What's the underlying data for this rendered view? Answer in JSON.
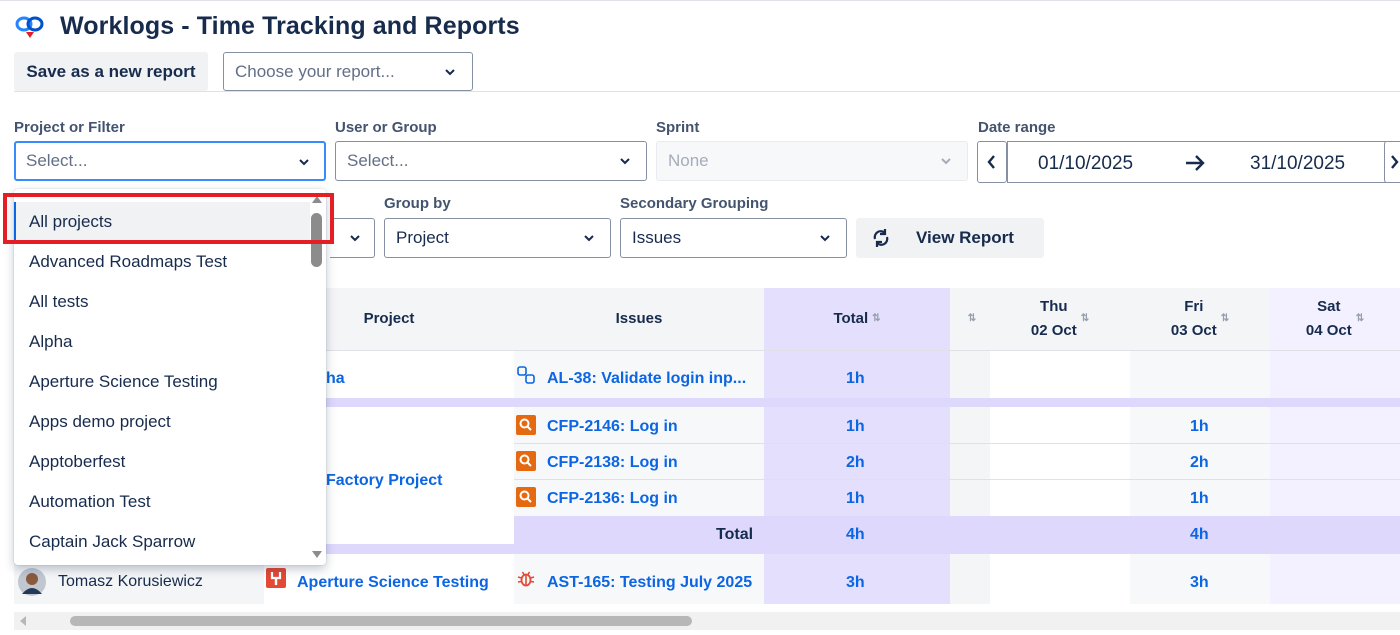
{
  "header": {
    "title": "Worklogs - Time Tracking and Reports",
    "save_label": "Save as a new report",
    "report_placeholder": "Choose your report..."
  },
  "filters": {
    "project": {
      "label": "Project or Filter",
      "value": "Select..."
    },
    "user": {
      "label": "User or Group",
      "value": "Select..."
    },
    "sprint": {
      "label": "Sprint",
      "value": "None"
    },
    "date_range": {
      "label": "Date range",
      "from": "01/10/2025",
      "to": "31/10/2025"
    },
    "group_by": {
      "label": "Group by",
      "value": "Project"
    },
    "secondary": {
      "label": "Secondary Grouping",
      "value": "Issues"
    },
    "view_report": "View Report"
  },
  "dropdown": {
    "items": [
      "All projects",
      "Advanced Roadmaps Test",
      "All tests",
      "Alpha",
      "Aperture Science Testing",
      "Apps demo project",
      "Apptoberfest",
      "Automation Test",
      "Captain Jack Sparrow"
    ],
    "selected": "All projects"
  },
  "table": {
    "headers": {
      "project": "Project",
      "issues": "Issues",
      "total": "Total",
      "thu_day": "Thu",
      "thu_date": "02 Oct",
      "fri_day": "Fri",
      "fri_date": "03 Oct",
      "sat_day": "Sat",
      "sat_date": "04 Oct"
    },
    "group1": {
      "project_partial": "ha",
      "issue": "AL-38: Validate login inp...",
      "total": "1h"
    },
    "group2": {
      "project_partial": "Factory Project",
      "rows": [
        {
          "issue": "CFP-2146: Log in",
          "total": "1h",
          "fri": "1h"
        },
        {
          "issue": "CFP-2138: Log in",
          "total": "2h",
          "fri": "2h"
        },
        {
          "issue": "CFP-2136: Log in",
          "total": "1h",
          "fri": "1h"
        }
      ],
      "total_label": "Total",
      "total": "4h",
      "fri_total": "4h"
    },
    "group3": {
      "user": "Tomasz Korusiewicz",
      "project": "Aperture Science Testing",
      "issue": "AST-165: Testing July 2025",
      "total": "3h",
      "fri": "3h"
    }
  }
}
